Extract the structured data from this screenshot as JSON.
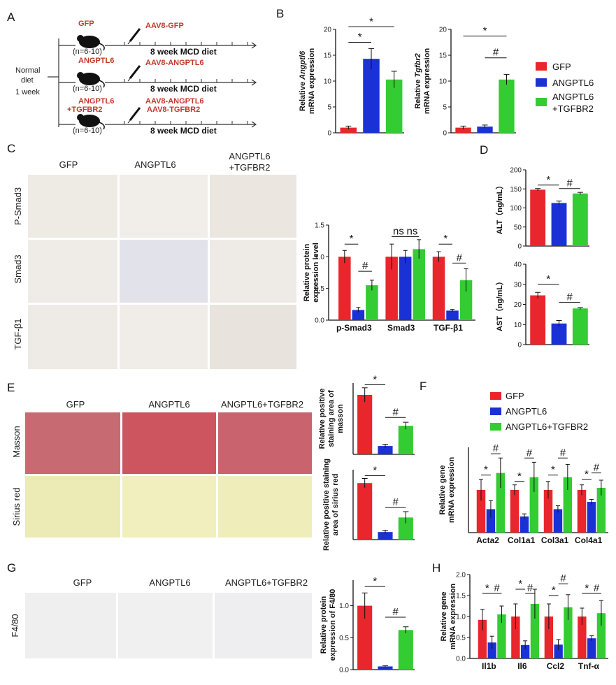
{
  "panels": [
    "A",
    "B",
    "C",
    "D",
    "E",
    "F",
    "G",
    "H"
  ],
  "colors": {
    "gfp": "#e8262b",
    "angptl6": "#1a31d6",
    "tgfbr2": "#33cc33"
  },
  "panelA": {
    "normal_diet": "Normal",
    "diet_line2": "diet",
    "week1": "1 week",
    "groups": [
      {
        "name": "GFP",
        "name2": "",
        "n": "(n=6-10)",
        "injection": "AAV8-GFP",
        "injection2": "",
        "regimen": "8 week   MCD diet"
      },
      {
        "name": "ANGPTL6",
        "name2": "",
        "n": "(n=6-10)",
        "injection": "AAV8-ANGPTL6",
        "injection2": "",
        "regimen": "8 week   MCD diet"
      },
      {
        "name": "ANGPTL6",
        "name2": "+TGFBR2",
        "n": "(n=6-10)",
        "injection": "AAV8-ANGPTL6",
        "injection2": "AAV8-TGFBR2",
        "regimen": "8 week   MCD diet"
      }
    ]
  },
  "legend_main": [
    "GFP",
    "ANGPTL6",
    "ANGPTL6",
    "+TGFBR2"
  ],
  "legend_f": [
    "GFP",
    "ANGPTL6",
    "ANGPTL6+TGFBR2"
  ],
  "imgC": {
    "cols": [
      "GFP",
      "ANGPTL6",
      "ANGPTL6"
    ],
    "col3b": "+TGFBR2",
    "rows": [
      "P-Smad3",
      "Smad3",
      "TGF-β1"
    ]
  },
  "imgE": {
    "cols": [
      "GFP",
      "ANGPTL6",
      "ANGPTL6+TGFBR2"
    ],
    "rows": [
      "Masson",
      "Sirius  red"
    ]
  },
  "imgG": {
    "cols": [
      "GFP",
      "ANGPTL6",
      "ANGPTL6+TGFBR2"
    ],
    "row": "F4/80"
  },
  "chart_data": [
    {
      "id": "B1",
      "type": "bar",
      "ylabel_italic": "Angptl6",
      "ylabel_pre": "Relative ",
      "ylabel_2": "mRNA expression",
      "categories": [
        "GFP",
        "ANGPTL6",
        "ANGPTL6+TGFBR2"
      ],
      "values": [
        1.0,
        14.3,
        10.3
      ],
      "errors": [
        0.3,
        2.0,
        1.6
      ],
      "ylim": [
        0,
        20
      ],
      "yticks": [
        0,
        5,
        10,
        15,
        20
      ],
      "sig": [
        {
          "text": "*",
          "a": 0,
          "b": 1,
          "level": 17.5
        },
        {
          "text": "*",
          "a": 0,
          "b": 2,
          "level": 20.5
        }
      ]
    },
    {
      "id": "B2",
      "type": "bar",
      "ylabel_italic": "Tgfbr2",
      "ylabel_pre": "Relative ",
      "ylabel_2": "mRNA expression",
      "categories": [
        "GFP",
        "ANGPTL6",
        "ANGPTL6+TGFBR2"
      ],
      "values": [
        1.0,
        1.2,
        10.3
      ],
      "errors": [
        0.3,
        0.3,
        1.0
      ],
      "ylim": [
        0,
        20
      ],
      "yticks": [
        0,
        5,
        10,
        15,
        20
      ],
      "sig": [
        {
          "text": "#",
          "a": 1,
          "b": 2,
          "level": 14.5
        },
        {
          "text": "*",
          "a": 0,
          "b": 2,
          "level": 18.7
        }
      ]
    },
    {
      "id": "C",
      "type": "bar",
      "ylabel": "Relative protein",
      "ylabel_2": "expression level",
      "categories": [
        "p-Smad3",
        "Smad3",
        "TGF-β1"
      ],
      "series": [
        {
          "name": "GFP",
          "values": [
            1.0,
            1.0,
            1.0
          ],
          "errors": [
            0.1,
            0.2,
            0.08
          ]
        },
        {
          "name": "ANGPTL6",
          "values": [
            0.16,
            1.0,
            0.15
          ],
          "errors": [
            0.04,
            0.1,
            0.02
          ]
        },
        {
          "name": "ANGPTL6+TGFBR2",
          "values": [
            0.55,
            1.12,
            0.63
          ],
          "errors": [
            0.08,
            0.15,
            0.18
          ]
        }
      ],
      "ylim": [
        0,
        1.5
      ],
      "yticks": [
        "0.0",
        "0.5",
        "1.0",
        "1.5"
      ],
      "sig": [
        {
          "text": "*",
          "g": 0,
          "a": 0,
          "b": 1,
          "level": 1.2
        },
        {
          "text": "#",
          "g": 0,
          "a": 1,
          "b": 2,
          "level": 0.77
        },
        {
          "text": "ns",
          "g": 1,
          "a": 0,
          "b": 1,
          "level": 1.32
        },
        {
          "text": "ns",
          "g": 1,
          "a": 1,
          "b": 2,
          "level": 1.32
        },
        {
          "text": "*",
          "g": 2,
          "a": 0,
          "b": 1,
          "level": 1.2
        },
        {
          "text": "#",
          "g": 2,
          "a": 1,
          "b": 2,
          "level": 0.9
        }
      ]
    },
    {
      "id": "D1",
      "type": "bar",
      "ylabel": "ALT（ng/mL）",
      "categories": [
        "GFP",
        "ANGPTL6",
        "ANGPTL6+TGFBR2"
      ],
      "values": [
        148,
        113,
        138
      ],
      "errors": [
        3,
        5,
        3
      ],
      "ylim": [
        0,
        200
      ],
      "yticks": [
        0,
        50,
        100,
        150,
        200
      ],
      "sig": [
        {
          "text": "*",
          "a": 0,
          "b": 1,
          "level": 160
        },
        {
          "text": "#",
          "a": 1,
          "b": 2,
          "level": 151
        }
      ]
    },
    {
      "id": "D2",
      "type": "bar",
      "ylabel": "AST（ng/mL）",
      "categories": [
        "GFP",
        "ANGPTL6",
        "ANGPTL6+TGFBR2"
      ],
      "values": [
        24.5,
        10.5,
        18
      ],
      "errors": [
        1.5,
        1.5,
        0.5
      ],
      "ylim": [
        0,
        40
      ],
      "yticks": [
        0,
        10,
        20,
        30,
        40
      ],
      "sig": [
        {
          "text": "*",
          "a": 0,
          "b": 1,
          "level": 30
        },
        {
          "text": "#",
          "a": 1,
          "b": 2,
          "level": 21
        }
      ]
    },
    {
      "id": "E1",
      "type": "bar",
      "ylabel": "Relative positive",
      "ylabel_2": "staining area of",
      "ylabel_3": "masson",
      "categories": [
        "GFP",
        "ANGPTL6",
        "ANGPTL6+TGFBR2"
      ],
      "values": [
        1.0,
        0.14,
        0.48
      ],
      "errors": [
        0.12,
        0.03,
        0.06
      ],
      "ylim": [
        0,
        1.2
      ],
      "yticks": [],
      "sig": [
        {
          "text": "*",
          "a": 0,
          "b": 1,
          "level": 1.17
        },
        {
          "text": "#",
          "a": 1,
          "b": 2,
          "level": 0.62
        }
      ]
    },
    {
      "id": "E2",
      "type": "bar",
      "ylabel": "Relative positive staining",
      "ylabel_2": "area of sirius red",
      "categories": [
        "GFP",
        "ANGPTL6",
        "ANGPTL6+TGFBR2"
      ],
      "values": [
        0.97,
        0.13,
        0.38
      ],
      "errors": [
        0.08,
        0.03,
        0.1
      ],
      "ylim": [
        0,
        1.2
      ],
      "yticks": [],
      "sig": [
        {
          "text": "*",
          "a": 0,
          "b": 1,
          "level": 1.1
        },
        {
          "text": "#",
          "a": 1,
          "b": 2,
          "level": 0.55
        }
      ]
    },
    {
      "id": "F",
      "type": "bar",
      "ylabel": "Relative gene",
      "ylabel_2": "mRNA expression",
      "categories": [
        "Acta2",
        "Col1a1",
        "Col3a1",
        "Col4a1"
      ],
      "series": [
        {
          "name": "GFP",
          "values": [
            1.0,
            1.0,
            1.0,
            1.0
          ],
          "errors": [
            0.25,
            0.12,
            0.2,
            0.12
          ]
        },
        {
          "name": "ANGPTL6",
          "values": [
            0.55,
            0.38,
            0.55,
            0.72
          ],
          "errors": [
            0.2,
            0.06,
            0.08,
            0.06
          ]
        },
        {
          "name": "ANGPTL6+TGFBR2",
          "values": [
            1.4,
            1.3,
            1.3,
            1.05
          ],
          "errors": [
            0.35,
            0.35,
            0.3,
            0.18
          ]
        }
      ],
      "ylim": [
        0,
        2.0
      ],
      "yticks": [],
      "sig": [
        {
          "text": "*",
          "g": 0,
          "a": 0,
          "b": 1,
          "level": 1.35
        },
        {
          "text": "#",
          "g": 0,
          "a": 1,
          "b": 2,
          "level": 1.85
        },
        {
          "text": "*",
          "g": 1,
          "a": 0,
          "b": 1,
          "level": 1.2
        },
        {
          "text": "#",
          "g": 1,
          "a": 1,
          "b": 2,
          "level": 1.75
        },
        {
          "text": "*",
          "g": 2,
          "a": 0,
          "b": 1,
          "level": 1.35
        },
        {
          "text": "#",
          "g": 2,
          "a": 1,
          "b": 2,
          "level": 1.75
        },
        {
          "text": "*",
          "g": 3,
          "a": 0,
          "b": 1,
          "level": 1.25
        },
        {
          "text": "#",
          "g": 3,
          "a": 1,
          "b": 2,
          "level": 1.4
        }
      ]
    },
    {
      "id": "G",
      "type": "bar",
      "ylabel": "Relative protein",
      "ylabel_2": "expression of F4/80",
      "categories": [
        "GFP",
        "ANGPTL6",
        "ANGPTL6+TGFBR2"
      ],
      "values": [
        1.0,
        0.05,
        0.62
      ],
      "errors": [
        0.2,
        0.01,
        0.05
      ],
      "ylim": [
        0,
        1.4
      ],
      "yticks": [
        "0.0",
        "0.5",
        "1.0",
        "1.5"
      ],
      "sig": [
        {
          "text": "*",
          "a": 0,
          "b": 1,
          "level": 1.3
        },
        {
          "text": "#",
          "a": 1,
          "b": 2,
          "level": 0.82
        }
      ]
    },
    {
      "id": "H",
      "type": "bar",
      "ylabel": "Relative gene",
      "ylabel_2": "mRNA expression",
      "categories": [
        "Il1b",
        "Il6",
        "Ccl2",
        "Tnf-α"
      ],
      "series": [
        {
          "name": "GFP",
          "values": [
            0.92,
            1.0,
            1.0,
            1.0
          ],
          "errors": [
            0.25,
            0.3,
            0.3,
            0.2
          ]
        },
        {
          "name": "ANGPTL6",
          "values": [
            0.38,
            0.32,
            0.33,
            0.48
          ],
          "errors": [
            0.15,
            0.1,
            0.12,
            0.06
          ]
        },
        {
          "name": "ANGPTL6+TGFBR2",
          "values": [
            1.05,
            1.3,
            1.22,
            1.08
          ],
          "errors": [
            0.2,
            0.35,
            0.3,
            0.3
          ]
        }
      ],
      "ylim": [
        0,
        2.0
      ],
      "yticks": [
        "0.0",
        "0.5",
        "1.0",
        "1.5",
        "2.0"
      ],
      "sig": [
        {
          "text": "*",
          "g": 0,
          "a": 0,
          "b": 1,
          "level": 1.55
        },
        {
          "text": "#",
          "g": 0,
          "a": 1,
          "b": 2,
          "level": 1.55
        },
        {
          "text": "*",
          "g": 1,
          "a": 0,
          "b": 1,
          "level": 1.65
        },
        {
          "text": "#",
          "g": 1,
          "a": 1,
          "b": 2,
          "level": 1.55
        },
        {
          "text": "*",
          "g": 2,
          "a": 0,
          "b": 1,
          "level": 1.5
        },
        {
          "text": "#",
          "g": 2,
          "a": 1,
          "b": 2,
          "level": 1.78
        },
        {
          "text": "*",
          "g": 3,
          "a": 0,
          "b": 1,
          "level": 1.55
        },
        {
          "text": "#",
          "g": 3,
          "a": 1,
          "b": 2,
          "level": 1.55
        }
      ]
    }
  ]
}
